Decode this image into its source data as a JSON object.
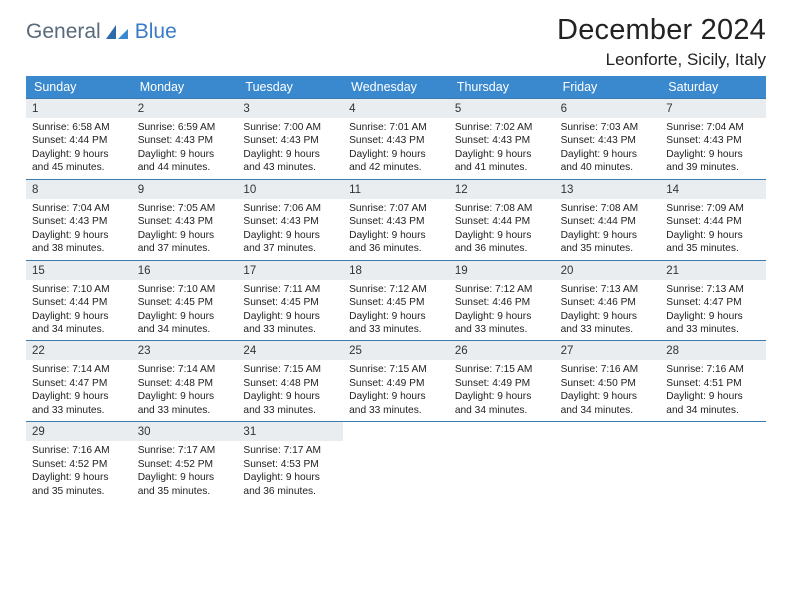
{
  "brand": {
    "text1": "General",
    "text2": "Blue"
  },
  "title": "December 2024",
  "location": "Leonforte, Sicily, Italy",
  "header_bg": "#3a89cf",
  "rule_color": "#3a7bb0",
  "daynum_bg": "#e9edef",
  "dow": [
    "Sunday",
    "Monday",
    "Tuesday",
    "Wednesday",
    "Thursday",
    "Friday",
    "Saturday"
  ],
  "weeks": [
    [
      {
        "d": "1",
        "sr": "6:58 AM",
        "ss": "4:44 PM",
        "dl": "9 hours and 45 minutes."
      },
      {
        "d": "2",
        "sr": "6:59 AM",
        "ss": "4:43 PM",
        "dl": "9 hours and 44 minutes."
      },
      {
        "d": "3",
        "sr": "7:00 AM",
        "ss": "4:43 PM",
        "dl": "9 hours and 43 minutes."
      },
      {
        "d": "4",
        "sr": "7:01 AM",
        "ss": "4:43 PM",
        "dl": "9 hours and 42 minutes."
      },
      {
        "d": "5",
        "sr": "7:02 AM",
        "ss": "4:43 PM",
        "dl": "9 hours and 41 minutes."
      },
      {
        "d": "6",
        "sr": "7:03 AM",
        "ss": "4:43 PM",
        "dl": "9 hours and 40 minutes."
      },
      {
        "d": "7",
        "sr": "7:04 AM",
        "ss": "4:43 PM",
        "dl": "9 hours and 39 minutes."
      }
    ],
    [
      {
        "d": "8",
        "sr": "7:04 AM",
        "ss": "4:43 PM",
        "dl": "9 hours and 38 minutes."
      },
      {
        "d": "9",
        "sr": "7:05 AM",
        "ss": "4:43 PM",
        "dl": "9 hours and 37 minutes."
      },
      {
        "d": "10",
        "sr": "7:06 AM",
        "ss": "4:43 PM",
        "dl": "9 hours and 37 minutes."
      },
      {
        "d": "11",
        "sr": "7:07 AM",
        "ss": "4:43 PM",
        "dl": "9 hours and 36 minutes."
      },
      {
        "d": "12",
        "sr": "7:08 AM",
        "ss": "4:44 PM",
        "dl": "9 hours and 36 minutes."
      },
      {
        "d": "13",
        "sr": "7:08 AM",
        "ss": "4:44 PM",
        "dl": "9 hours and 35 minutes."
      },
      {
        "d": "14",
        "sr": "7:09 AM",
        "ss": "4:44 PM",
        "dl": "9 hours and 35 minutes."
      }
    ],
    [
      {
        "d": "15",
        "sr": "7:10 AM",
        "ss": "4:44 PM",
        "dl": "9 hours and 34 minutes."
      },
      {
        "d": "16",
        "sr": "7:10 AM",
        "ss": "4:45 PM",
        "dl": "9 hours and 34 minutes."
      },
      {
        "d": "17",
        "sr": "7:11 AM",
        "ss": "4:45 PM",
        "dl": "9 hours and 33 minutes."
      },
      {
        "d": "18",
        "sr": "7:12 AM",
        "ss": "4:45 PM",
        "dl": "9 hours and 33 minutes."
      },
      {
        "d": "19",
        "sr": "7:12 AM",
        "ss": "4:46 PM",
        "dl": "9 hours and 33 minutes."
      },
      {
        "d": "20",
        "sr": "7:13 AM",
        "ss": "4:46 PM",
        "dl": "9 hours and 33 minutes."
      },
      {
        "d": "21",
        "sr": "7:13 AM",
        "ss": "4:47 PM",
        "dl": "9 hours and 33 minutes."
      }
    ],
    [
      {
        "d": "22",
        "sr": "7:14 AM",
        "ss": "4:47 PM",
        "dl": "9 hours and 33 minutes."
      },
      {
        "d": "23",
        "sr": "7:14 AM",
        "ss": "4:48 PM",
        "dl": "9 hours and 33 minutes."
      },
      {
        "d": "24",
        "sr": "7:15 AM",
        "ss": "4:48 PM",
        "dl": "9 hours and 33 minutes."
      },
      {
        "d": "25",
        "sr": "7:15 AM",
        "ss": "4:49 PM",
        "dl": "9 hours and 33 minutes."
      },
      {
        "d": "26",
        "sr": "7:15 AM",
        "ss": "4:49 PM",
        "dl": "9 hours and 34 minutes."
      },
      {
        "d": "27",
        "sr": "7:16 AM",
        "ss": "4:50 PM",
        "dl": "9 hours and 34 minutes."
      },
      {
        "d": "28",
        "sr": "7:16 AM",
        "ss": "4:51 PM",
        "dl": "9 hours and 34 minutes."
      }
    ],
    [
      {
        "d": "29",
        "sr": "7:16 AM",
        "ss": "4:52 PM",
        "dl": "9 hours and 35 minutes."
      },
      {
        "d": "30",
        "sr": "7:17 AM",
        "ss": "4:52 PM",
        "dl": "9 hours and 35 minutes."
      },
      {
        "d": "31",
        "sr": "7:17 AM",
        "ss": "4:53 PM",
        "dl": "9 hours and 36 minutes."
      },
      null,
      null,
      null,
      null
    ]
  ],
  "labels": {
    "sunrise": "Sunrise:",
    "sunset": "Sunset:",
    "daylight": "Daylight:"
  }
}
